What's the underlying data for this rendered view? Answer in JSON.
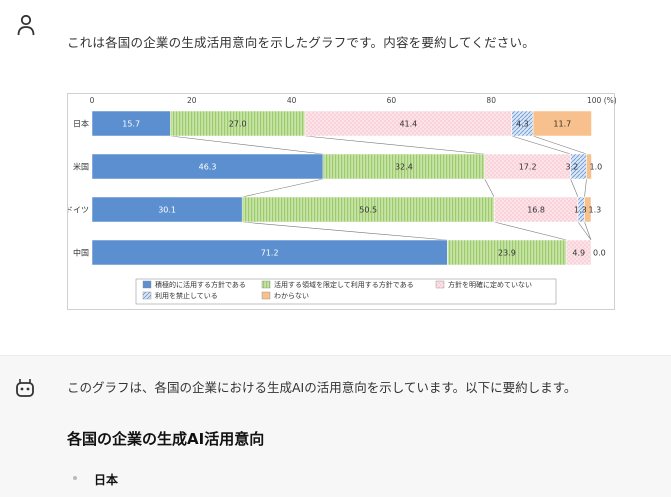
{
  "user_message": "これは各国の企業の生成活用意向を示したグラフです。内容を要約してください。",
  "chart_data": {
    "type": "bar",
    "stacked": true,
    "orientation": "horizontal",
    "x_ticks": [
      "0",
      "20",
      "40",
      "60",
      "80",
      "100 (%)"
    ],
    "xlim": [
      0,
      100
    ],
    "categories": [
      "日本",
      "米国",
      "ドイツ",
      "中国"
    ],
    "series": [
      {
        "name": "積極的に活用する方針である",
        "color": "#5b8fd0",
        "pattern": "solid",
        "values": [
          15.7,
          46.3,
          30.1,
          71.2
        ],
        "labels": [
          "15.7",
          "46.3",
          "30.1",
          "71.2"
        ]
      },
      {
        "name": "活用する領域を限定して利用する方針である",
        "color": "#b7dc8e",
        "pattern": "vstripe",
        "values": [
          27.0,
          32.4,
          50.5,
          23.9
        ],
        "labels": [
          "27.0",
          "32.4",
          "50.5",
          "23.9"
        ]
      },
      {
        "name": "方針を明確に定めていない",
        "color": "#f6bcc8",
        "pattern": "dots",
        "values": [
          41.4,
          17.2,
          16.8,
          4.9
        ],
        "labels": [
          "41.4",
          "17.2",
          "16.8",
          "4.9"
        ]
      },
      {
        "name": "利用を禁止している",
        "color": "#a9c6ea",
        "pattern": "hatch",
        "values": [
          4.3,
          3.2,
          1.3,
          0.0
        ],
        "labels": [
          "4.3",
          "3.2",
          "1.3",
          "0.0"
        ]
      },
      {
        "name": "わからない",
        "color": "#f7c08c",
        "pattern": "solid",
        "values": [
          11.7,
          1.0,
          1.3,
          0.0
        ],
        "labels": [
          "11.7",
          "1.0",
          "1.3",
          ""
        ]
      }
    ],
    "legend_position": "bottom",
    "grid": false
  },
  "assistant": {
    "intro": "このグラフは、各国の企業における生成AIの活用意向を示しています。以下に要約します。",
    "heading": "各国の企業の生成AI活用意向",
    "bullet_1": "日本"
  }
}
